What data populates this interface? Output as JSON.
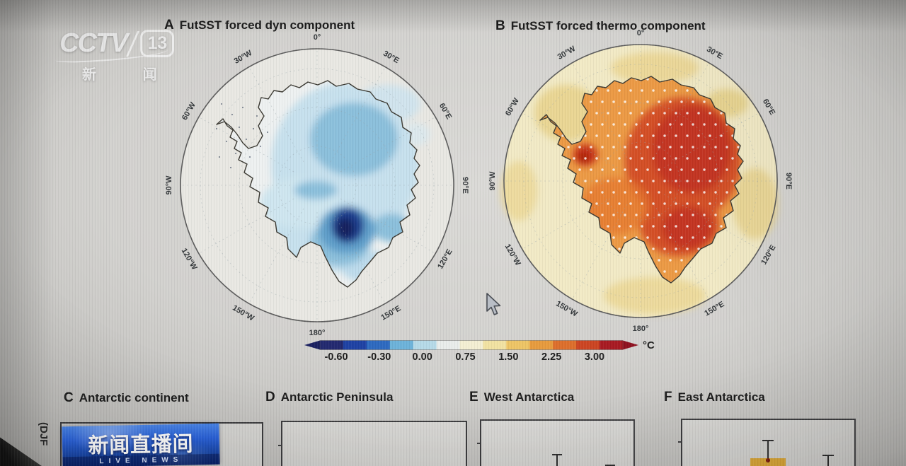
{
  "broadcast": {
    "channel": {
      "brand": "CCTV",
      "number": "13",
      "name": "新 闻"
    },
    "banner": {
      "title": "新闻直播间",
      "subtitle": "LIVE NEWS"
    }
  },
  "figure": {
    "panel_a": {
      "id": "A",
      "title": "FutSST forced dyn component"
    },
    "panel_b": {
      "id": "B",
      "title": "FutSST forced thermo component"
    },
    "panel_c": {
      "id": "C",
      "title": "Antarctic continent"
    },
    "panel_d": {
      "id": "D",
      "title": "Antarctic Peninsula"
    },
    "panel_e": {
      "id": "E",
      "title": "West Antarctica"
    },
    "panel_f": {
      "id": "F",
      "title": "East Antarctica"
    },
    "ylabel_fragment": "(DJF",
    "longitude_labels": [
      "0°",
      "30°E",
      "60°E",
      "90°E",
      "120°E",
      "150°E",
      "180°",
      "150°W",
      "120°W",
      "90°W",
      "60°W",
      "30°W"
    ],
    "colorbar": {
      "unit": "°C",
      "tick_labels": [
        "-0.60",
        "-0.30",
        "0.00",
        "0.75",
        "1.50",
        "2.25",
        "3.00"
      ],
      "segment_colors": [
        "#232a70",
        "#1f42a4",
        "#2e6ac0",
        "#6db3da",
        "#b6dae8",
        "#e9edeb",
        "#f4efd3",
        "#f2e2a2",
        "#eec566",
        "#e79b3e",
        "#dd6f2c",
        "#cc4523",
        "#a81b23"
      ],
      "left_arrow_color": "#1a2060",
      "right_arrow_color": "#8f1220"
    }
  },
  "chart_data": [
    {
      "type": "heatmap",
      "subtype": "south-polar-stereographic-map",
      "panel": "A",
      "title": "FutSST forced dyn component",
      "units": "°C",
      "colorbar_ticks": [
        -0.6,
        -0.3,
        0.0,
        0.75,
        1.5,
        2.25,
        3.0
      ],
      "longitude_ring_labels": [
        "0°",
        "30°E",
        "60°E",
        "90°E",
        "120°E",
        "150°E",
        "180°",
        "150°W",
        "120°W",
        "90°W",
        "60°W",
        "30°W"
      ],
      "summary": "Dynamic component of Antarctic surface air temperature change: weak negative anomalies (0 to -0.3°C) over most of East Antarctica, strongest cooling (about -0.6°C, dark blue) over West Antarctica near the Ross Ice Shelf; ocean mostly near 0°C; sparse dark stippling over the ocean northwest of the Peninsula."
    },
    {
      "type": "heatmap",
      "subtype": "south-polar-stereographic-map",
      "panel": "B",
      "title": "FutSST forced thermo component",
      "units": "°C",
      "colorbar_ticks": [
        -0.6,
        -0.3,
        0.0,
        0.75,
        1.5,
        2.25,
        3.0
      ],
      "longitude_ring_labels": [
        "0°",
        "30°E",
        "60°E",
        "90°E",
        "120°E",
        "150°E",
        "180°",
        "150°W",
        "120°W",
        "90°W",
        "60°W",
        "30°W"
      ],
      "summary": "Thermodynamic component: strong warming over the whole continent, about +1.5 to +3°C (orange to dark red) with maximum over East Antarctica and a red spot at the Peninsula base; surrounding ocean about +0.3 to +0.75°C (pale yellow); white stippling covers the continent."
    },
    {
      "type": "bar",
      "panel": "C",
      "title": "Antarctic continent",
      "note": "plot area mostly cropped at frame bottom; no bars visible"
    },
    {
      "type": "bar",
      "panel": "D",
      "title": "Antarctic Peninsula",
      "note": "plot area mostly cropped; no bars visible"
    },
    {
      "type": "bar",
      "panel": "E",
      "title": "West Antarctica",
      "note": "two error-bar whisker tops visible; values cropped"
    },
    {
      "type": "bar",
      "panel": "F",
      "title": "East Antarctica",
      "note": "one orange/tan bar with error bar and a second whisker visible; values cropped"
    }
  ]
}
